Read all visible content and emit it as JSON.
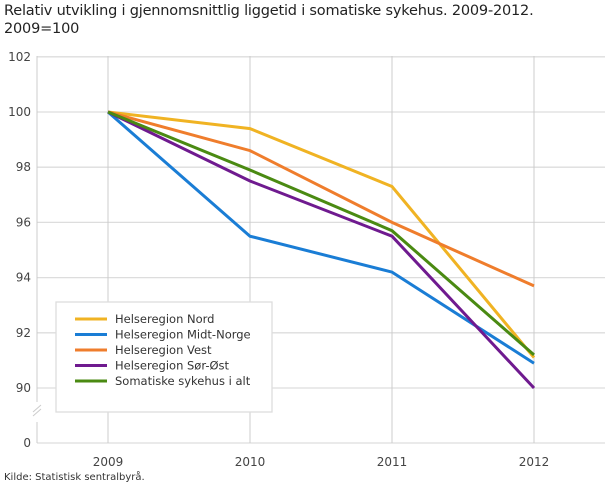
{
  "title": "Relativ utvikling i gjennomsnittlig liggetid i somatiske sykehus. 2009-2012. 2009=100",
  "title_line1": "Relativ utvikling i gjennomsnittlig liggetid i somatiske sykehus. 2009-2012.",
  "title_line2": "2009=100",
  "source": "Kilde: Statistisk sentralbyrå.",
  "axis": {
    "y_ticks": [
      "102",
      "100",
      "98",
      "96",
      "94",
      "92",
      "90",
      "0"
    ],
    "x_ticks": [
      "2009",
      "2010",
      "2011",
      "2012"
    ]
  },
  "legend": [
    {
      "label": "Helseregion Nord",
      "color": "#f0b323"
    },
    {
      "label": "Helseregion Midt-Norge",
      "color": "#1a7dd5"
    },
    {
      "label": "Helseregion Vest",
      "color": "#ef7d2c"
    },
    {
      "label": "Helseregion Sør-Øst",
      "color": "#6f1a8f"
    },
    {
      "label": "Somatiske sykehus i alt",
      "color": "#4a8a12"
    }
  ],
  "chart_data": {
    "type": "line",
    "title": "Relativ utvikling i gjennomsnittlig liggetid i somatiske sykehus. 2009-2012. 2009=100",
    "xlabel": "",
    "ylabel": "",
    "x": [
      "2009",
      "2010",
      "2011",
      "2012"
    ],
    "ylim": [
      90,
      102
    ],
    "y_axis_break": "between 0 and 90",
    "grid": true,
    "legend_position": "inside lower left",
    "series": [
      {
        "name": "Helseregion Nord",
        "color": "#f0b323",
        "values": [
          100,
          99.4,
          97.3,
          91.1
        ]
      },
      {
        "name": "Helseregion Midt-Norge",
        "color": "#1a7dd5",
        "values": [
          100,
          95.5,
          94.2,
          90.9
        ]
      },
      {
        "name": "Helseregion Vest",
        "color": "#ef7d2c",
        "values": [
          100,
          98.6,
          96.0,
          93.7
        ]
      },
      {
        "name": "Helseregion Sør-Øst",
        "color": "#6f1a8f",
        "values": [
          100,
          97.5,
          95.5,
          90.0
        ]
      },
      {
        "name": "Somatiske sykehus i alt",
        "color": "#4a8a12",
        "values": [
          100,
          97.9,
          95.7,
          91.2
        ]
      }
    ],
    "source": "Kilde: Statistisk sentralbyrå."
  }
}
